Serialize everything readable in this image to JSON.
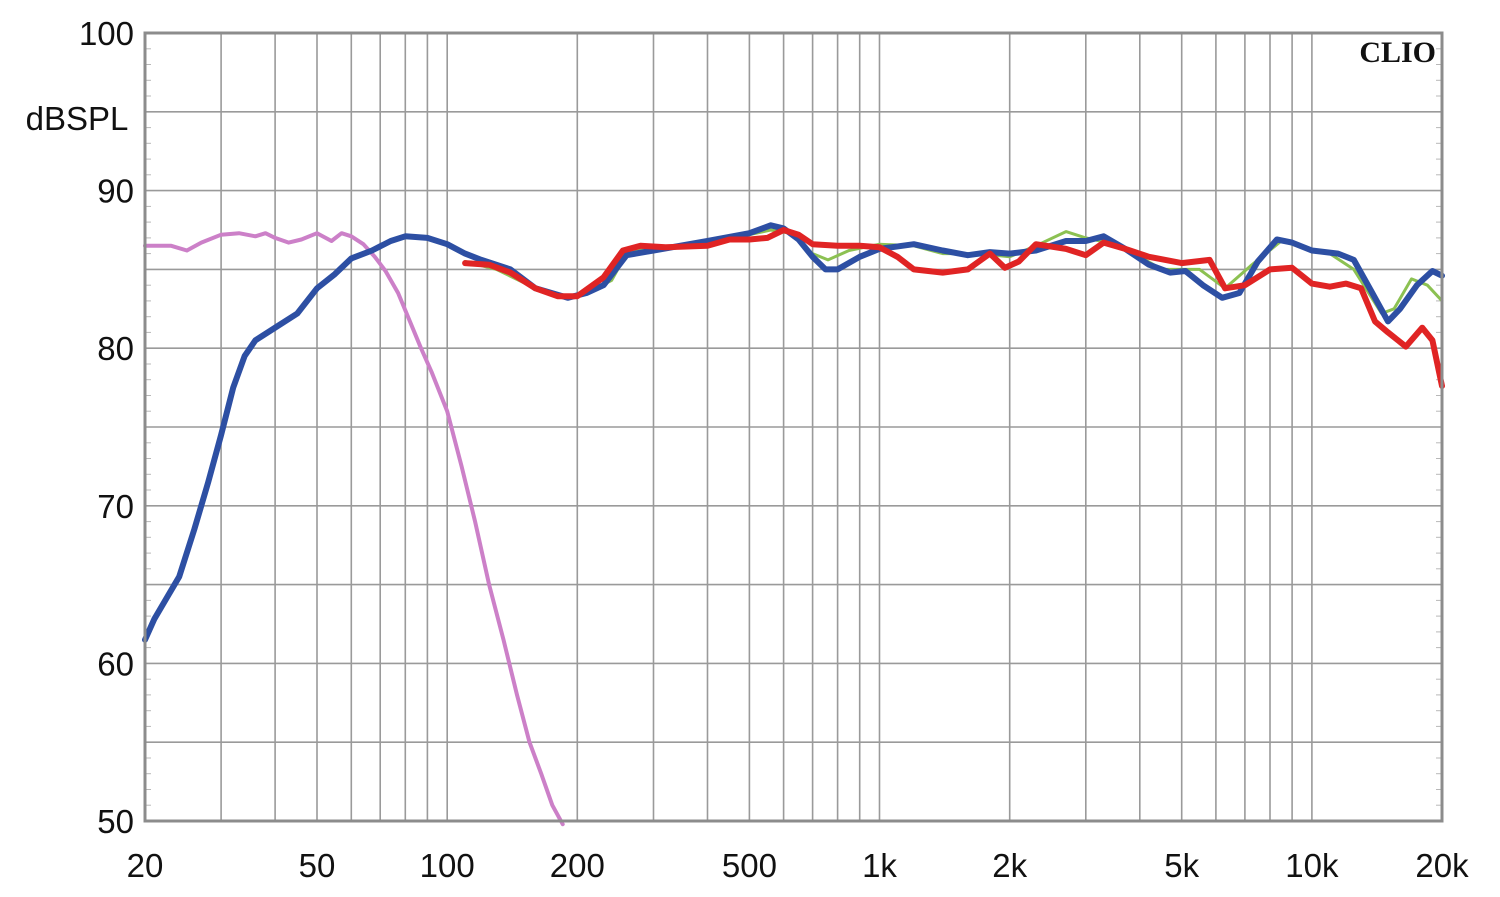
{
  "chart_data": {
    "type": "line",
    "title": "",
    "xlabel": "",
    "ylabel": "dBSPL",
    "brand": "CLIO",
    "x_scale": "log",
    "xlim": [
      20,
      20000
    ],
    "ylim": [
      50,
      100
    ],
    "grid": true,
    "x_tick_labels": [
      {
        "value": 20,
        "label": "20"
      },
      {
        "value": 50,
        "label": "50"
      },
      {
        "value": 100,
        "label": "100"
      },
      {
        "value": 200,
        "label": "200"
      },
      {
        "value": 500,
        "label": "500"
      },
      {
        "value": 1000,
        "label": "1k"
      },
      {
        "value": 2000,
        "label": "2k"
      },
      {
        "value": 5000,
        "label": "5k"
      },
      {
        "value": 10000,
        "label": "10k"
      },
      {
        "value": 20000,
        "label": "20k"
      }
    ],
    "y_tick_labels": [
      {
        "value": 100,
        "label": "100"
      },
      {
        "value": 90,
        "label": "90"
      },
      {
        "value": 80,
        "label": "80"
      },
      {
        "value": 70,
        "label": "70"
      },
      {
        "value": 60,
        "label": "60"
      },
      {
        "value": 50,
        "label": "50"
      }
    ],
    "series": [
      {
        "color": "#8cc152",
        "width": 3,
        "points": [
          [
            110,
            85.5
          ],
          [
            130,
            85.0
          ],
          [
            160,
            83.8
          ],
          [
            190,
            83.3
          ],
          [
            210,
            83.5
          ],
          [
            240,
            84.3
          ],
          [
            260,
            86.0
          ],
          [
            300,
            86.4
          ],
          [
            400,
            86.6
          ],
          [
            500,
            87.2
          ],
          [
            560,
            87.5
          ],
          [
            620,
            87.3
          ],
          [
            700,
            86.0
          ],
          [
            760,
            85.6
          ],
          [
            850,
            86.2
          ],
          [
            1000,
            86.6
          ],
          [
            1200,
            86.5
          ],
          [
            1400,
            86.0
          ],
          [
            1700,
            86.0
          ],
          [
            2000,
            85.8
          ],
          [
            2300,
            86.5
          ],
          [
            2700,
            87.4
          ],
          [
            3000,
            87.0
          ],
          [
            3500,
            86.6
          ],
          [
            4000,
            85.8
          ],
          [
            4500,
            85.0
          ],
          [
            5500,
            85.0
          ],
          [
            6300,
            83.8
          ],
          [
            7200,
            85.2
          ],
          [
            8500,
            86.8
          ],
          [
            9500,
            86.4
          ],
          [
            11000,
            86.0
          ],
          [
            12500,
            85.0
          ],
          [
            14500,
            82.2
          ],
          [
            15500,
            82.5
          ],
          [
            17000,
            84.4
          ],
          [
            18500,
            84.0
          ],
          [
            20000,
            83.0
          ]
        ]
      },
      {
        "color": "#cc80c8",
        "width": 4,
        "points": [
          [
            20,
            86.5
          ],
          [
            23,
            86.5
          ],
          [
            25,
            86.2
          ],
          [
            27,
            86.7
          ],
          [
            30,
            87.2
          ],
          [
            33,
            87.3
          ],
          [
            36,
            87.1
          ],
          [
            38,
            87.3
          ],
          [
            40,
            87.0
          ],
          [
            43,
            86.7
          ],
          [
            46,
            86.9
          ],
          [
            50,
            87.3
          ],
          [
            54,
            86.8
          ],
          [
            57,
            87.3
          ],
          [
            60,
            87.1
          ],
          [
            64,
            86.6
          ],
          [
            68,
            85.8
          ],
          [
            72,
            84.9
          ],
          [
            77,
            83.5
          ],
          [
            82,
            81.7
          ],
          [
            87,
            80.0
          ],
          [
            92,
            78.5
          ],
          [
            100,
            76.0
          ],
          [
            108,
            72.5
          ],
          [
            116,
            69.0
          ],
          [
            125,
            65.0
          ],
          [
            135,
            61.5
          ],
          [
            145,
            58.0
          ],
          [
            155,
            55.0
          ],
          [
            165,
            53.0
          ],
          [
            175,
            51.0
          ],
          [
            185,
            49.8
          ]
        ]
      },
      {
        "color": "#2d4fa3",
        "width": 6,
        "points": [
          [
            20,
            61.5
          ],
          [
            21,
            62.8
          ],
          [
            22.5,
            64.2
          ],
          [
            24,
            65.5
          ],
          [
            26,
            68.5
          ],
          [
            28,
            71.5
          ],
          [
            30,
            74.5
          ],
          [
            32,
            77.5
          ],
          [
            34,
            79.5
          ],
          [
            36,
            80.5
          ],
          [
            40,
            81.3
          ],
          [
            45,
            82.2
          ],
          [
            50,
            83.8
          ],
          [
            55,
            84.7
          ],
          [
            60,
            85.7
          ],
          [
            67,
            86.2
          ],
          [
            74,
            86.8
          ],
          [
            80,
            87.1
          ],
          [
            90,
            87.0
          ],
          [
            100,
            86.6
          ],
          [
            110,
            86.0
          ],
          [
            120,
            85.6
          ],
          [
            140,
            85.0
          ],
          [
            160,
            83.8
          ],
          [
            190,
            83.2
          ],
          [
            210,
            83.5
          ],
          [
            230,
            84.0
          ],
          [
            260,
            85.9
          ],
          [
            300,
            86.2
          ],
          [
            400,
            86.8
          ],
          [
            500,
            87.3
          ],
          [
            560,
            87.8
          ],
          [
            600,
            87.6
          ],
          [
            650,
            86.9
          ],
          [
            700,
            85.8
          ],
          [
            750,
            85.0
          ],
          [
            800,
            85.0
          ],
          [
            900,
            85.8
          ],
          [
            1000,
            86.3
          ],
          [
            1200,
            86.6
          ],
          [
            1400,
            86.2
          ],
          [
            1600,
            85.9
          ],
          [
            1800,
            86.1
          ],
          [
            2000,
            86.0
          ],
          [
            2300,
            86.2
          ],
          [
            2700,
            86.8
          ],
          [
            3000,
            86.8
          ],
          [
            3300,
            87.1
          ],
          [
            3700,
            86.3
          ],
          [
            4200,
            85.3
          ],
          [
            4700,
            84.8
          ],
          [
            5100,
            84.9
          ],
          [
            5600,
            84.0
          ],
          [
            6200,
            83.2
          ],
          [
            6800,
            83.5
          ],
          [
            7500,
            85.5
          ],
          [
            8300,
            86.9
          ],
          [
            9000,
            86.7
          ],
          [
            10000,
            86.2
          ],
          [
            11500,
            86.0
          ],
          [
            12500,
            85.6
          ],
          [
            13800,
            83.5
          ],
          [
            15000,
            81.7
          ],
          [
            16000,
            82.5
          ],
          [
            17500,
            84.0
          ],
          [
            19000,
            84.9
          ],
          [
            20000,
            84.6
          ]
        ]
      },
      {
        "color": "#e02424",
        "width": 6,
        "points": [
          [
            110,
            85.4
          ],
          [
            125,
            85.3
          ],
          [
            140,
            84.8
          ],
          [
            160,
            83.8
          ],
          [
            180,
            83.3
          ],
          [
            200,
            83.3
          ],
          [
            230,
            84.5
          ],
          [
            255,
            86.2
          ],
          [
            280,
            86.5
          ],
          [
            320,
            86.4
          ],
          [
            400,
            86.5
          ],
          [
            450,
            86.9
          ],
          [
            500,
            86.9
          ],
          [
            550,
            87.0
          ],
          [
            600,
            87.5
          ],
          [
            650,
            87.2
          ],
          [
            700,
            86.6
          ],
          [
            800,
            86.5
          ],
          [
            900,
            86.5
          ],
          [
            1000,
            86.4
          ],
          [
            1100,
            85.8
          ],
          [
            1200,
            85.0
          ],
          [
            1400,
            84.8
          ],
          [
            1600,
            85.0
          ],
          [
            1800,
            86.0
          ],
          [
            1950,
            85.1
          ],
          [
            2100,
            85.5
          ],
          [
            2300,
            86.6
          ],
          [
            2700,
            86.3
          ],
          [
            3000,
            85.9
          ],
          [
            3300,
            86.7
          ],
          [
            3700,
            86.3
          ],
          [
            4200,
            85.8
          ],
          [
            5000,
            85.4
          ],
          [
            5800,
            85.6
          ],
          [
            6300,
            83.8
          ],
          [
            7000,
            84.0
          ],
          [
            8000,
            85.0
          ],
          [
            9000,
            85.1
          ],
          [
            10000,
            84.1
          ],
          [
            11000,
            83.9
          ],
          [
            12000,
            84.1
          ],
          [
            13000,
            83.8
          ],
          [
            14000,
            81.7
          ],
          [
            15000,
            81.0
          ],
          [
            16500,
            80.1
          ],
          [
            18000,
            81.3
          ],
          [
            19000,
            80.5
          ],
          [
            20000,
            77.6
          ]
        ]
      }
    ]
  }
}
